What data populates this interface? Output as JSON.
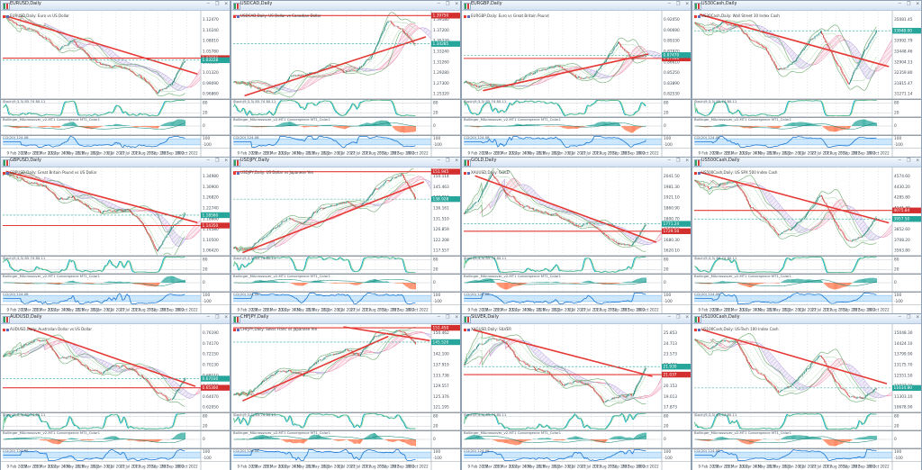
{
  "app": {
    "workspace": "MetaTrader chart grid, 4 x 3 tiled daily charts",
    "window_buttons": {
      "minimize": "─",
      "restore": "❐",
      "close": "✕"
    },
    "timeframe": "Daily"
  },
  "shared": {
    "dates": [
      "9 Feb 2022",
      "2 Mar 2022",
      "23 Mar 2022",
      "13 Apr 2022",
      "4 May 2022",
      "25 May 2022",
      "15 Jun 2022",
      "6 Jul 2022",
      "27 Jul 2022",
      "17 Aug 2022",
      "7 Sep 2022",
      "28 Sep 2022",
      "19 Oct 2022"
    ],
    "sub1_label": "Stoch(9,3,3)  85.74  80.11",
    "sub2_label": "Bollinger_MAcrossover_v2-MT1  Convergence  MT1_Color1",
    "sub3_label": "CCI(20)  124.08",
    "sub_levels": {
      "stoch_high": "80",
      "stoch_low": "20",
      "osma_zero": "0",
      "cci_high": "100",
      "cci_low": "-100"
    },
    "colors": {
      "candle_up": "#2e8b84",
      "candle_down": "#d64545",
      "bands": "#43a047",
      "bands_inner": "#81c784",
      "cloud_pink": "#e91e63",
      "cloud_violet": "#7e57c2",
      "trend_red": "#e53935",
      "current_teal": "#26a69a",
      "stoch_k": "#00acc1",
      "stoch_d": "#81c784",
      "osma_pos": "#26a69a",
      "osma_neg": "#ff7043",
      "cci_line": "#1976d2",
      "cci_band": "#90caf9",
      "titlebar": "#d4e2f3",
      "grid": "#9aa7b4"
    }
  },
  "chart_data": [
    {
      "type": "candlestick",
      "symbol": "EURUSD",
      "window_title": "EURUSD,Daily",
      "legend": "EURUSD,Daily: Euro vs US Dollar",
      "digits": 5,
      "ymin": 0.948,
      "ymax": 1.14,
      "ticks": [
        "1.12470",
        "1.10240",
        "1.08010",
        "1.05780",
        "1.03550",
        "1.01320",
        "0.99090",
        "0.96860"
      ],
      "close_anchors": [
        1.131,
        1.112,
        1.1,
        1.083,
        1.056,
        1.073,
        1.045,
        1.021,
        1.018,
        1.012,
        0.993,
        0.96,
        0.977,
        1.032
      ],
      "trend_lines": [
        [
          [
            0.02,
            1.13
          ],
          [
            0.98,
            1.002
          ]
        ]
      ],
      "hlines": [
        {
          "price": 1.0368,
          "label": "1.03680"
        }
      ],
      "current": {
        "price": 1.03228,
        "label": "1.03228"
      }
    },
    {
      "type": "candlestick",
      "symbol": "USDCAD",
      "window_title": "USDCAD,Daily",
      "legend": "USDCAD,Daily: US Dollar vs Canadian Dollar",
      "digits": 5,
      "ymin": 1.238,
      "ymax": 1.405,
      "ticks": [
        "1.39180",
        "1.37200",
        "1.35220",
        "1.33240",
        "1.31260",
        "1.29280",
        "1.27300",
        "1.25320"
      ],
      "close_anchors": [
        1.27,
        1.266,
        1.253,
        1.248,
        1.279,
        1.283,
        1.289,
        1.302,
        1.287,
        1.295,
        1.323,
        1.389,
        1.37,
        1.342
      ],
      "trend_lines": [
        [
          [
            0.06,
            1.243
          ],
          [
            0.97,
            1.356
          ]
        ]
      ],
      "hlines": [
        {
          "price": 1.3975,
          "label": "1.39750"
        }
      ],
      "current": {
        "price": 1.34285,
        "label": "1.34285"
      }
    },
    {
      "type": "candlestick",
      "symbol": "EURGBP",
      "window_title": "EURGBP,Daily",
      "legend": "EURGBP,Daily: Euro vs Great Britain Pound",
      "digits": 5,
      "ymin": 0.818,
      "ymax": 0.932,
      "ticks": [
        "0.92050",
        "0.90690",
        "0.89330",
        "0.87970",
        "0.86610",
        "0.85250",
        "0.83890",
        "0.82530"
      ],
      "close_anchors": [
        0.839,
        0.833,
        0.836,
        0.833,
        0.843,
        0.851,
        0.858,
        0.86,
        0.845,
        0.844,
        0.864,
        0.892,
        0.87,
        0.874
      ],
      "trend_lines": [
        [
          [
            0.1,
            0.828
          ],
          [
            0.93,
            0.876
          ]
        ]
      ],
      "hlines": [
        {
          "price": 0.8704,
          "label": "0.87040"
        }
      ],
      "current": {
        "price": 0.8747,
        "label": "0.87470"
      }
    },
    {
      "type": "candlestick",
      "symbol": "US30Cash",
      "window_title": "US30Cash,Daily",
      "legend": "US30Cash,Daily: Wall Street 30 Index Cash",
      "digits": 2,
      "ymin": 28100,
      "ymax": 35600,
      "ticks": [
        "35081.45",
        "34537.12",
        "33992.79",
        "33448.46",
        "32904.13",
        "32359.80",
        "31815.47",
        "31271.14"
      ],
      "close_anchors": [
        34700,
        33900,
        34600,
        34400,
        33200,
        32500,
        30500,
        31100,
        32700,
        33900,
        31500,
        29300,
        31800,
        33950
      ],
      "trend_lines": [
        [
          [
            0.03,
            35350
          ],
          [
            0.98,
            30850
          ]
        ]
      ],
      "hlines": [],
      "current": {
        "price": 33948.0,
        "label": "33948.00"
      }
    },
    {
      "type": "candlestick",
      "symbol": "GBPUSD",
      "window_title": "GBPUSD,Daily",
      "legend": "GBPUSD,Daily: Great Britain Pound vs US Dollar",
      "digits": 5,
      "ymin": 1.025,
      "ymax": 1.375,
      "ticks": [
        "1.34980",
        "1.30900",
        "1.26820",
        "1.22740",
        "1.18660",
        "1.14580",
        "1.10500",
        "1.06420"
      ],
      "close_anchors": [
        1.355,
        1.341,
        1.318,
        1.303,
        1.25,
        1.258,
        1.222,
        1.198,
        1.204,
        1.206,
        1.15,
        1.04,
        1.13,
        1.185
      ],
      "trend_lines": [
        [
          [
            0.02,
            1.362
          ],
          [
            0.98,
            1.156
          ]
        ]
      ],
      "hlines": [
        {
          "price": 1.1435,
          "label": "1.14350"
        }
      ],
      "current": {
        "price": 1.1856,
        "label": "1.18560"
      }
    },
    {
      "type": "candlestick",
      "symbol": "USDJPY",
      "window_title": "USDJPY,Daily",
      "legend": "USDJPY,Daily: US Dollar vs Japanese Yen",
      "digits": 3,
      "ymin": 112.5,
      "ymax": 153.5,
      "ticks": [
        "150.114",
        "145.463",
        "140.812",
        "136.161",
        "131.510",
        "126.859",
        "122.208",
        "117.557"
      ],
      "close_anchors": [
        115.4,
        115.0,
        119.8,
        125.4,
        129.9,
        127.3,
        134.0,
        136.0,
        137.5,
        135.2,
        142.5,
        147.5,
        151.0,
        138.9
      ],
      "trend_lines": [
        [
          [
            0.05,
            113.6
          ],
          [
            0.96,
            147.0
          ]
        ]
      ],
      "hlines": [
        {
          "price": 151.945,
          "label": "151.945"
        }
      ],
      "current": {
        "price": 138.928,
        "label": "138.928"
      }
    },
    {
      "type": "candlestick",
      "symbol": "XAUUSD",
      "window_title": "GOLD,Daily",
      "legend": "XAUUSD,Daily: GOLD",
      "digits": 2,
      "ymin": 1596,
      "ymax": 2085,
      "ticks": [
        "2041.50",
        "1981.30",
        "1921.10",
        "1860.90",
        "1800.70",
        "1740.50",
        "1680.30",
        "1620.10"
      ],
      "close_anchors": [
        1830,
        1905,
        2050,
        1950,
        1880,
        1850,
        1830,
        1810,
        1760,
        1775,
        1710,
        1660,
        1650,
        1770
      ],
      "trend_lines": [
        [
          [
            0.06,
            2042
          ],
          [
            0.97,
            1668
          ]
        ]
      ],
      "hlines": [
        {
          "price": 1729.5,
          "label": "1729.50"
        }
      ],
      "current": {
        "price": 1771.24,
        "label": "1771.24"
      }
    },
    {
      "type": "candlestick",
      "symbol": "US500Cash",
      "window_title": "US500Cash,Daily",
      "legend": "US500Cash,Daily: US SPX 500 Index Cash",
      "digits": 2,
      "ymin": 3460,
      "ymax": 4660,
      "ticks": [
        "4574.60",
        "4430.20",
        "4285.80",
        "4141.40",
        "3997.00",
        "3852.60",
        "3708.20",
        "3563.80"
      ],
      "close_anchors": [
        4500,
        4380,
        4460,
        4450,
        4130,
        3960,
        3750,
        3830,
        4010,
        4290,
        3930,
        3640,
        3720,
        3960
      ],
      "trend_lines": [
        [
          [
            0.03,
            4605
          ],
          [
            0.98,
            3905
          ]
        ]
      ],
      "hlines": [
        {
          "price": 4075.84,
          "label": "4075.84"
        }
      ],
      "current": {
        "price": 3957.5,
        "label": "3957.50"
      }
    },
    {
      "type": "candlestick",
      "symbol": "AUDUSD",
      "window_title": "AUDUSD,Daily",
      "legend": "AUDUSD,Daily: Australian Dollar vs US Dollar",
      "digits": 5,
      "ymin": 0.608,
      "ymax": 0.772,
      "ticks": [
        "0.76190",
        "0.74170",
        "0.72150",
        "0.70130",
        "0.68110",
        "0.66090",
        "0.64070",
        "0.62050"
      ],
      "close_anchors": [
        0.715,
        0.726,
        0.74,
        0.744,
        0.709,
        0.711,
        0.693,
        0.68,
        0.695,
        0.69,
        0.674,
        0.645,
        0.628,
        0.67
      ],
      "trend_lines": [
        [
          [
            0.13,
            0.766
          ],
          [
            0.97,
            0.656
          ]
        ]
      ],
      "hlines": [
        {
          "price": 0.653,
          "label": "0.65300"
        }
      ],
      "current": {
        "price": 0.6703,
        "label": "0.67030"
      }
    },
    {
      "type": "candlestick",
      "symbol": "CHFJPY",
      "window_title": "CHFJPY,Daily",
      "legend": "CHFJPY,Daily: Swiss Franc vs Japanese Yen",
      "digits": 3,
      "ymin": 116.8,
      "ymax": 152.6,
      "ticks": [
        "150.462",
        "146.281",
        "142.100",
        "137.919",
        "133.738",
        "129.557",
        "125.376",
        "121.195"
      ],
      "close_anchors": [
        124.3,
        124.0,
        128.5,
        132.8,
        133.4,
        131.9,
        137.8,
        140.0,
        142.6,
        139.9,
        147.5,
        149.4,
        150.0,
        145.5
      ],
      "trend_lines": [
        [
          [
            0.05,
            121.3
          ],
          [
            0.78,
            147.8
          ]
        ],
        [
          [
            0.56,
            151.8
          ],
          [
            0.99,
            146.2
          ]
        ]
      ],
      "hlines": [
        {
          "price": 151.45,
          "label": "151.450"
        }
      ],
      "current": {
        "price": 145.52,
        "label": "145.520"
      }
    },
    {
      "type": "candlestick",
      "symbol": "XAGUSD",
      "window_title": "SILVER,Daily",
      "legend": "XAGUSD,Daily: SILVER",
      "digits": 3,
      "ymin": 16.9,
      "ymax": 26.6,
      "ticks": [
        "25.853",
        "24.713",
        "23.573",
        "22.433",
        "21.293",
        "20.153",
        "19.013",
        "17.873"
      ],
      "close_anchors": [
        22.3,
        24.3,
        25.1,
        24.6,
        22.5,
        21.8,
        21.3,
        19.9,
        20.3,
        19.8,
        18.0,
        18.6,
        18.7,
        21.9
      ],
      "trend_lines": [
        [
          [
            0.05,
            26.05
          ],
          [
            0.95,
            20.85
          ]
        ]
      ],
      "hlines": [
        {
          "price": 21.037,
          "label": "21.037"
        }
      ],
      "current": {
        "price": 21.93,
        "label": "21.930"
      }
    },
    {
      "type": "candlestick",
      "symbol": "US100Cash",
      "window_title": "US100Cash,Daily",
      "legend": "US100Cash,Daily: US-Tech 100 Index Cash",
      "digits": 2,
      "ymin": 10200,
      "ymax": 15400,
      "ticks": [
        "15048.30",
        "14424.10",
        "13799.90",
        "13175.70",
        "12551.50",
        "11927.30",
        "11303.10",
        "10678.90"
      ],
      "close_anchors": [
        14600,
        13900,
        14500,
        14400,
        12900,
        12300,
        11400,
        11800,
        12700,
        13600,
        12100,
        11100,
        11000,
        11600
      ],
      "trend_lines": [
        [
          [
            0.04,
            15120
          ],
          [
            0.97,
            11880
          ]
        ]
      ],
      "hlines": [],
      "current": {
        "price": 11614.8,
        "label": "11614.80"
      }
    }
  ]
}
